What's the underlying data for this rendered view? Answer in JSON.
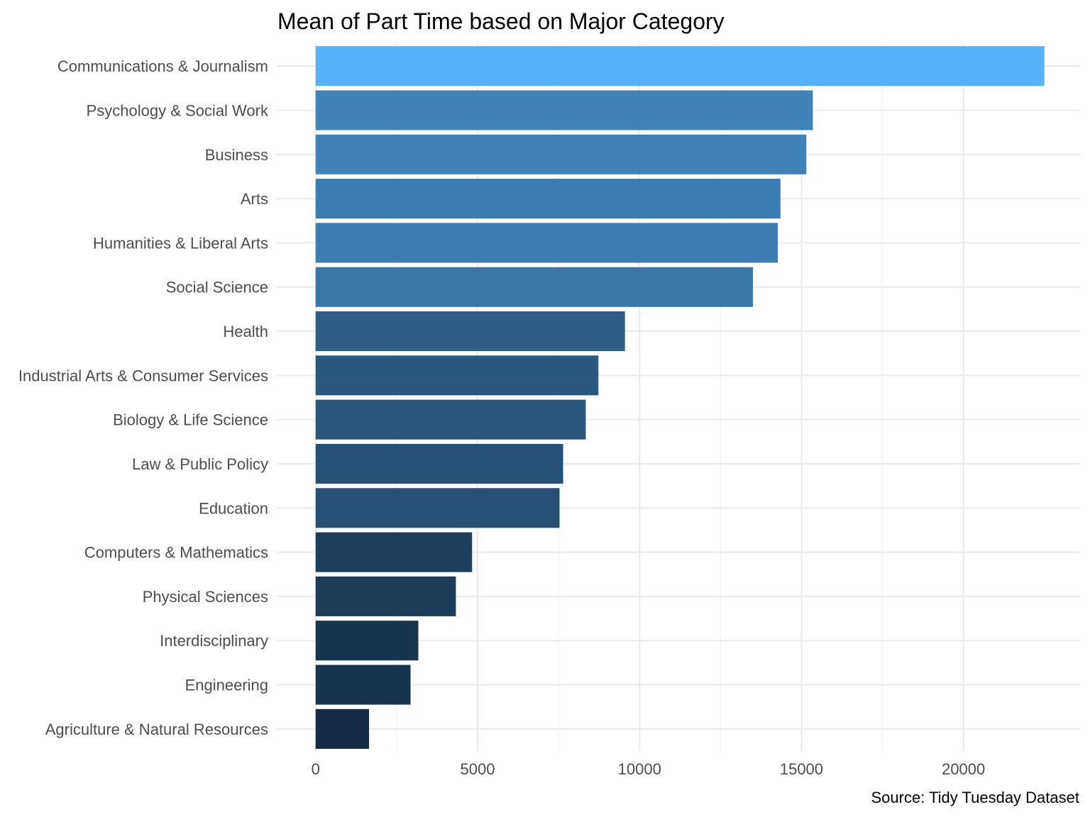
{
  "chart_data": {
    "type": "bar",
    "orientation": "horizontal",
    "title": "Mean of Part Time based on Major Category",
    "caption": "Source: Tidy Tuesday Dataset",
    "xlabel": "",
    "ylabel": "",
    "categories": [
      "Communications & Journalism",
      "Psychology & Social Work",
      "Business",
      "Arts",
      "Humanities & Liberal Arts",
      "Social Science",
      "Health",
      "Industrial Arts & Consumer Services",
      "Biology & Life Science",
      "Law & Public Policy",
      "Education",
      "Computers & Mathematics",
      "Physical Sciences",
      "Interdisciplinary",
      "Engineering",
      "Agriculture & Natural Resources"
    ],
    "values": [
      22500,
      15350,
      15150,
      14350,
      14270,
      13500,
      9550,
      8730,
      8340,
      7640,
      7530,
      4830,
      4330,
      3170,
      2930,
      1650
    ],
    "xlim": [
      -1200,
      23600
    ],
    "x_ticks": [
      0,
      5000,
      10000,
      15000,
      20000
    ],
    "fill_scale": {
      "low": "#132b43",
      "high": "#56b1f7"
    },
    "grid": true,
    "legend": "none"
  }
}
